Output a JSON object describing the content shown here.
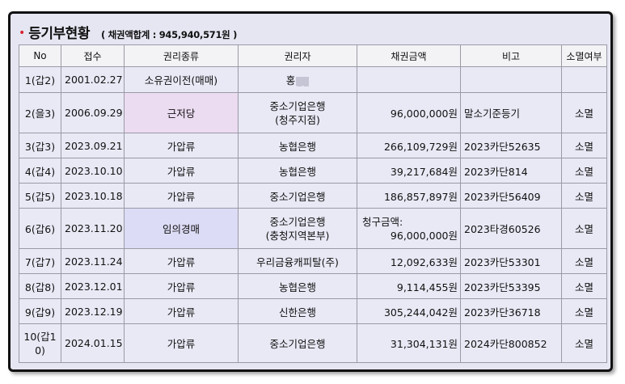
{
  "header": {
    "bullet": "•",
    "title": "등기부현황",
    "subtitle": "( 채권액합계 : 945,940,571원 )"
  },
  "table": {
    "columns": [
      "No",
      "접수",
      "권리종류",
      "권리자",
      "채권금액",
      "비고",
      "소멸여부"
    ],
    "rows": [
      {
        "no": "1(갑2)",
        "date": "2001.02.27",
        "type": "소유권이전(매매)",
        "holder": "홍",
        "holder2": "",
        "amount_label": "",
        "amount": "",
        "note": "",
        "status": ""
      },
      {
        "no": "2(을3)",
        "date": "2006.09.29",
        "type": "근저당",
        "holder": "중소기업은행",
        "holder2": "(청주지점)",
        "amount_label": "",
        "amount": "96,000,000원",
        "note": "말소기준등기",
        "status": "소멸"
      },
      {
        "no": "3(갑3)",
        "date": "2023.09.21",
        "type": "가압류",
        "holder": "농협은행",
        "holder2": "",
        "amount_label": "",
        "amount": "266,109,729원",
        "note": "2023카단52635",
        "status": "소멸"
      },
      {
        "no": "4(갑4)",
        "date": "2023.10.10",
        "type": "가압류",
        "holder": "농협은행",
        "holder2": "",
        "amount_label": "",
        "amount": "39,217,684원",
        "note": "2023카단814",
        "status": "소멸"
      },
      {
        "no": "5(갑5)",
        "date": "2023.10.18",
        "type": "가압류",
        "holder": "중소기업은행",
        "holder2": "",
        "amount_label": "",
        "amount": "186,857,897원",
        "note": "2023카단56409",
        "status": "소멸"
      },
      {
        "no": "6(갑6)",
        "date": "2023.11.20",
        "type": "임의경매",
        "holder": "중소기업은행",
        "holder2": "(충청지역본부)",
        "amount_label": "청구금액:",
        "amount": "96,000,000원",
        "note": "2023타경60526",
        "status": "소멸"
      },
      {
        "no": "7(갑7)",
        "date": "2023.11.24",
        "type": "가압류",
        "holder": "우리금융캐피탈(주)",
        "holder2": "",
        "amount_label": "",
        "amount": "12,092,633원",
        "note": "2023카단53301",
        "status": "소멸"
      },
      {
        "no": "8(갑8)",
        "date": "2023.12.01",
        "type": "가압류",
        "holder": "농협은행",
        "holder2": "",
        "amount_label": "",
        "amount": "9,114,455원",
        "note": "2023카단53395",
        "status": "소멸"
      },
      {
        "no": "9(갑9)",
        "date": "2023.12.19",
        "type": "가압류",
        "holder": "신한은행",
        "holder2": "",
        "amount_label": "",
        "amount": "305,244,042원",
        "note": "2023카단36718",
        "status": "소멸"
      },
      {
        "no": "10(갑10)",
        "date": "2024.01.15",
        "type": "가압류",
        "holder": "중소기업은행",
        "holder2": "",
        "amount_label": "",
        "amount": "31,304,131원",
        "note": "2024카단800852",
        "status": "소멸"
      }
    ]
  },
  "colors": {
    "frame_bg": "#e6e6f3",
    "bullet": "#d9232e",
    "highlight_pink": "#ecdcf2",
    "highlight_lavender": "#dcdcf6"
  }
}
